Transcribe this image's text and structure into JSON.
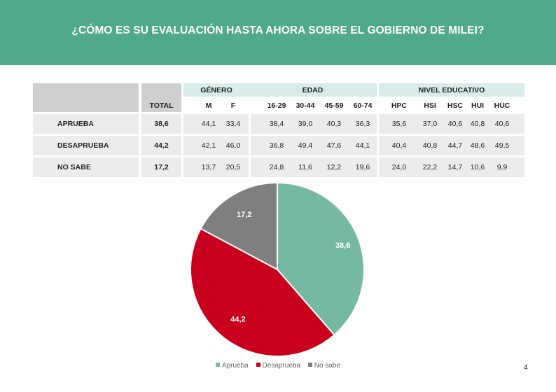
{
  "header": {
    "title": "¿CÓMO ES SU EVALUACIÓN HASTA AHORA SOBRE EL GOBIERNO DE MILEI?"
  },
  "table": {
    "total_label": "TOTAL",
    "groups": [
      {
        "label": "GÉNERO",
        "cols": [
          "M",
          "F"
        ]
      },
      {
        "label": "EDAD",
        "cols": [
          "16-29",
          "30-44",
          "45-59",
          "60-74"
        ]
      },
      {
        "label": "NIVEL EDUCATIVO",
        "cols": [
          "HPC",
          "HSI",
          "HSC",
          "HUI",
          "HUC"
        ]
      }
    ],
    "rows": [
      {
        "label": "APRUEBA",
        "total": "38,6",
        "values": [
          "44,1",
          "33,4",
          "38,4",
          "39,0",
          "40,3",
          "36,3",
          "35,6",
          "37,0",
          "40,6",
          "40,8",
          "40,6"
        ]
      },
      {
        "label": "DESAPRUEBA",
        "total": "44,2",
        "values": [
          "42,1",
          "46,0",
          "36,8",
          "49,4",
          "47,6",
          "44,1",
          "40,4",
          "40,8",
          "44,7",
          "48,6",
          "49,5"
        ]
      },
      {
        "label": "NO SABE",
        "total": "17,2",
        "values": [
          "13,7",
          "20,5",
          "24,8",
          "11,6",
          "12,2",
          "19,6",
          "24,0",
          "22,2",
          "14,7",
          "10,6",
          "9,9"
        ]
      }
    ]
  },
  "chart_data": {
    "type": "pie",
    "categories": [
      "Aprueba",
      "Desaprueba",
      "No sabe"
    ],
    "values": [
      38.6,
      44.2,
      17.2
    ],
    "labels": [
      "38,6",
      "44,2",
      "17,2"
    ],
    "colors": [
      "#76b9a2",
      "#c8001e",
      "#7f7f7f"
    ],
    "legend": "bottom"
  },
  "page_number": "4"
}
